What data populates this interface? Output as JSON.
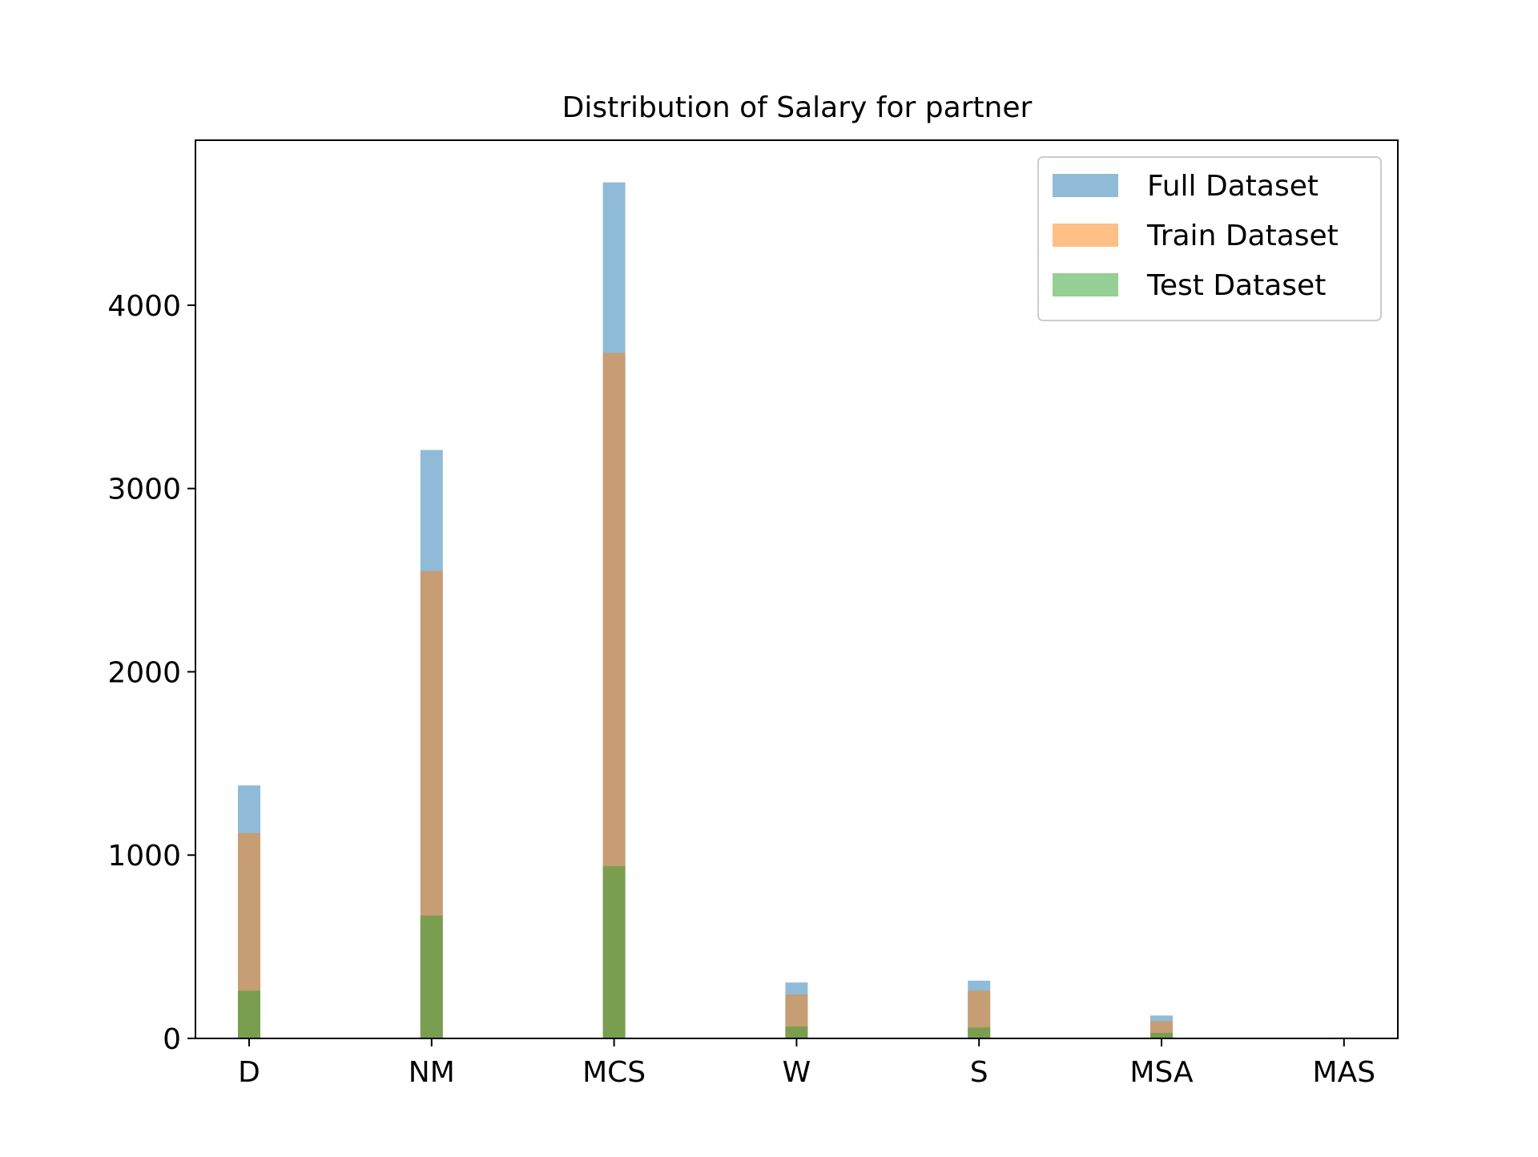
{
  "chart_data": {
    "type": "bar",
    "title": "Distribution of Salary for partner",
    "xlabel": "",
    "ylabel": "",
    "categories": [
      "D",
      "NM",
      "MCS",
      "W",
      "S",
      "MSA",
      "MAS"
    ],
    "ylim": [
      0,
      4900
    ],
    "yticks": [
      0,
      1000,
      2000,
      3000,
      4000
    ],
    "grid": false,
    "legend_position": "top-right",
    "series": [
      {
        "name": "Full Dataset",
        "color": "#1f77b4",
        "opacity": 0.5,
        "values": [
          1380,
          3210,
          4670,
          305,
          315,
          125,
          5
        ]
      },
      {
        "name": "Train Dataset",
        "color": "#ff7f0e",
        "opacity": 0.5,
        "values": [
          1120,
          2550,
          3740,
          240,
          260,
          95,
          4
        ]
      },
      {
        "name": "Test Dataset",
        "color": "#2ca02c",
        "opacity": 0.5,
        "values": [
          260,
          670,
          940,
          65,
          60,
          30,
          1
        ]
      }
    ]
  }
}
